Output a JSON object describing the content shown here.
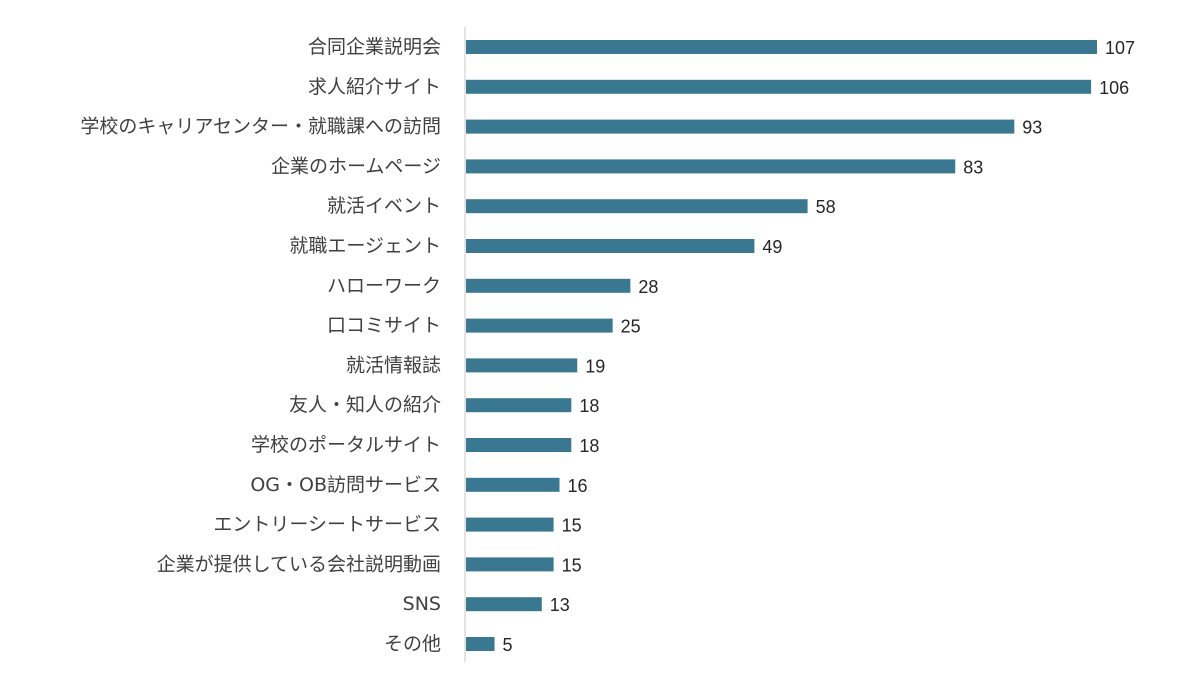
{
  "chart_data": {
    "type": "bar",
    "orientation": "horizontal",
    "title": "",
    "xlabel": "",
    "ylabel": "",
    "categories": [
      "合同企業説明会",
      "求人紹介サイト",
      "学校のキャリアセンター・就職課への訪問",
      "企業のホームページ",
      "就活イベント",
      "就職エージェント",
      "ハローワーク",
      "口コミサイト",
      "就活情報誌",
      "友人・知人の紹介",
      "学校のポータルサイト",
      "OG・OB訪問サービス",
      "エントリーシートサービス",
      "企業が提供している会社説明動画",
      "SNS",
      "その他"
    ],
    "values": [
      107,
      106,
      93,
      83,
      58,
      49,
      28,
      25,
      19,
      18,
      18,
      16,
      15,
      15,
      13,
      5
    ],
    "xlim": [
      0,
      120
    ],
    "grid": false,
    "legend": "none",
    "data_labels": true,
    "colors": {
      "bar": "#3a7891",
      "axis": "#c8c8c8",
      "category_text": "#404040",
      "value_text": "#262626"
    }
  }
}
